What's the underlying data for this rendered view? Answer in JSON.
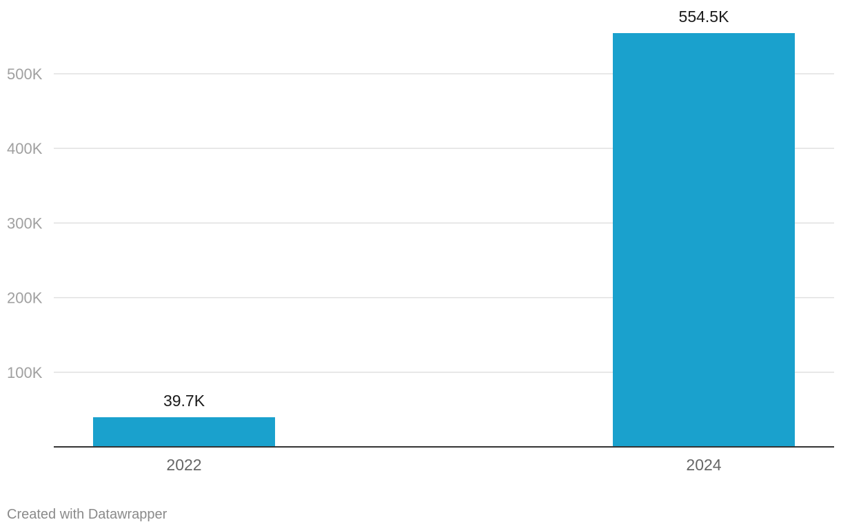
{
  "chart_data": {
    "type": "bar",
    "categories": [
      "2022",
      "2024"
    ],
    "values": [
      39700,
      554500
    ],
    "value_labels": [
      "39.7K",
      "554.5K"
    ],
    "yticks": [
      100000,
      200000,
      300000,
      400000,
      500000
    ],
    "ytick_labels": [
      "100K",
      "200K",
      "300K",
      "400K",
      "500K"
    ],
    "ylim": [
      0,
      554500
    ],
    "grid": true,
    "bar_color": "#1aa1cd",
    "title": "",
    "xlabel": "",
    "ylabel": ""
  },
  "footer": {
    "credit": "Created with Datawrapper"
  }
}
